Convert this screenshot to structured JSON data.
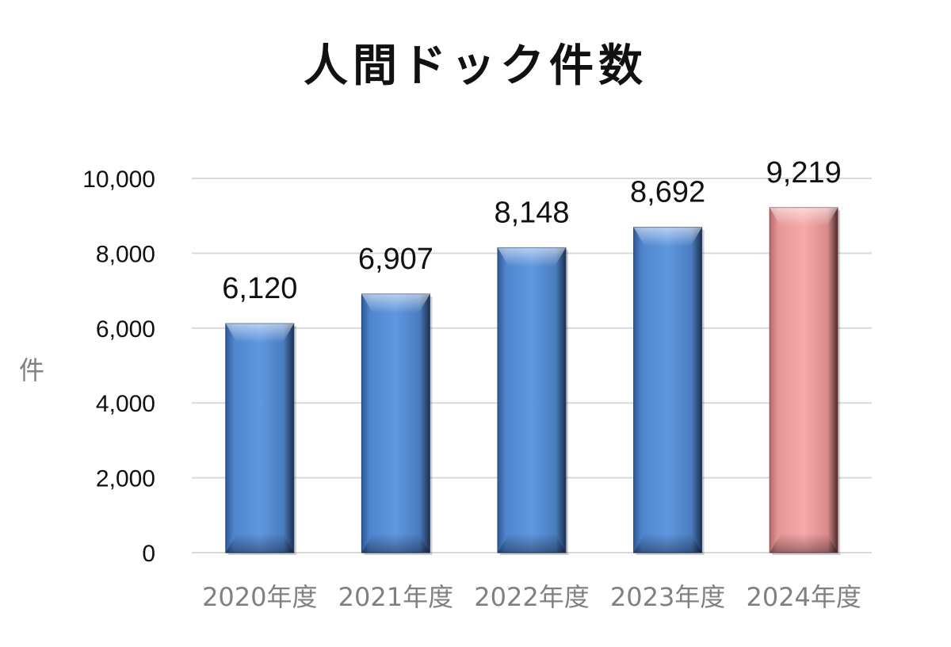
{
  "chart_data": {
    "type": "bar",
    "title": "人間ドック件数",
    "ylabel": "件",
    "xlabel": "",
    "categories": [
      "2020年度",
      "2021年度",
      "2022年度",
      "2023年度",
      "2024年度"
    ],
    "values": [
      6120,
      6907,
      8148,
      8692,
      9219
    ],
    "data_labels": [
      "6,120",
      "6,907",
      "8,148",
      "8,692",
      "9,219"
    ],
    "ylim": [
      0,
      10000
    ],
    "yticks": [
      0,
      2000,
      4000,
      6000,
      8000,
      10000
    ],
    "ytick_labels": [
      "0",
      "2,000",
      "4,000",
      "6,000",
      "8,000",
      "10,000"
    ],
    "grid": true,
    "legend": "none",
    "colors": {
      "bar_default": "#5b93d6",
      "bar_highlight": "#f5a3a3",
      "gridline": "#d9d9d9",
      "category_text": "#808080"
    },
    "highlight_index": 4
  }
}
